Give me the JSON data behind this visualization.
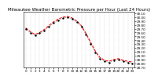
{
  "title": "Milwaukee Weather Barometric Pressure per Hour (Last 24 Hours)",
  "hours": [
    0,
    1,
    2,
    3,
    4,
    5,
    6,
    7,
    8,
    9,
    10,
    11,
    12,
    13,
    14,
    15,
    16,
    17,
    18,
    19,
    20,
    21,
    22,
    23
  ],
  "pressure_red": [
    29.72,
    29.62,
    29.55,
    29.6,
    29.68,
    29.78,
    29.88,
    29.95,
    30.0,
    30.02,
    29.98,
    29.9,
    29.78,
    29.58,
    29.35,
    29.12,
    28.95,
    28.88,
    28.85,
    28.9,
    28.92,
    28.88,
    28.85,
    28.83
  ],
  "pressure_black": [
    29.7,
    29.58,
    29.52,
    29.58,
    29.65,
    29.75,
    29.85,
    29.92,
    29.97,
    30.0,
    29.95,
    29.87,
    29.75,
    29.55,
    29.3,
    29.08,
    28.92,
    28.85,
    28.82,
    28.88,
    28.9,
    28.85,
    28.82,
    28.8
  ],
  "line_color": "#ff0000",
  "marker_color": "#000000",
  "bg_color": "#ffffff",
  "grid_color": "#aaaaaa",
  "ylim_min": 28.7,
  "ylim_max": 30.15,
  "title_fontsize": 4.0,
  "tick_fontsize": 3.0,
  "ytick_step": 0.1
}
